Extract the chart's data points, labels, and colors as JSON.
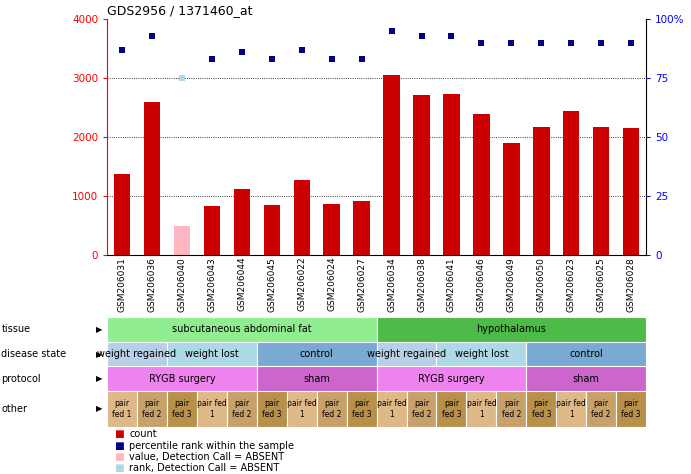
{
  "title": "GDS2956 / 1371460_at",
  "samples": [
    "GSM206031",
    "GSM206036",
    "GSM206040",
    "GSM206043",
    "GSM206044",
    "GSM206045",
    "GSM206022",
    "GSM206024",
    "GSM206027",
    "GSM206034",
    "GSM206038",
    "GSM206041",
    "GSM206046",
    "GSM206049",
    "GSM206050",
    "GSM206023",
    "GSM206025",
    "GSM206028"
  ],
  "bar_values": [
    1380,
    2600,
    500,
    830,
    1120,
    860,
    1280,
    870,
    920,
    3050,
    2720,
    2730,
    2400,
    1900,
    2180,
    2450,
    2180,
    2150
  ],
  "bar_colors": [
    "#cc0000",
    "#cc0000",
    "#ffb6c1",
    "#cc0000",
    "#cc0000",
    "#cc0000",
    "#cc0000",
    "#cc0000",
    "#cc0000",
    "#cc0000",
    "#cc0000",
    "#cc0000",
    "#cc0000",
    "#cc0000",
    "#cc0000",
    "#cc0000",
    "#cc0000",
    "#cc0000"
  ],
  "dot_values": [
    87,
    93,
    75,
    83,
    86,
    83,
    87,
    83,
    83,
    95,
    93,
    93,
    90,
    90,
    90,
    90,
    90,
    90
  ],
  "dot_absent": [
    false,
    false,
    true,
    false,
    false,
    false,
    false,
    false,
    false,
    false,
    false,
    false,
    false,
    false,
    false,
    false,
    false,
    false
  ],
  "ylim_left": [
    0,
    4000
  ],
  "ylim_right": [
    0,
    100
  ],
  "yticks_left": [
    0,
    1000,
    2000,
    3000,
    4000
  ],
  "ytick_labels_right": [
    "0",
    "25",
    "50",
    "75",
    "100%"
  ],
  "tissue_labels": [
    {
      "text": "subcutaneous abdominal fat",
      "start": 0,
      "end": 8,
      "color": "#90ee90"
    },
    {
      "text": "hypothalamus",
      "start": 9,
      "end": 17,
      "color": "#4cbb47"
    }
  ],
  "disease_labels": [
    {
      "text": "weight regained",
      "start": 0,
      "end": 1,
      "color": "#b8cfe8"
    },
    {
      "text": "weight lost",
      "start": 2,
      "end": 4,
      "color": "#add8e6"
    },
    {
      "text": "control",
      "start": 5,
      "end": 8,
      "color": "#7aaad4"
    },
    {
      "text": "weight regained",
      "start": 9,
      "end": 10,
      "color": "#b8cfe8"
    },
    {
      "text": "weight lost",
      "start": 11,
      "end": 13,
      "color": "#add8e6"
    },
    {
      "text": "control",
      "start": 14,
      "end": 17,
      "color": "#7aaad4"
    }
  ],
  "protocol_labels": [
    {
      "text": "RYGB surgery",
      "start": 0,
      "end": 4,
      "color": "#ee82ee"
    },
    {
      "text": "sham",
      "start": 5,
      "end": 8,
      "color": "#cc66cc"
    },
    {
      "text": "RYGB surgery",
      "start": 9,
      "end": 13,
      "color": "#ee82ee"
    },
    {
      "text": "sham",
      "start": 14,
      "end": 17,
      "color": "#cc66cc"
    }
  ],
  "other_texts": [
    "pair\nfed 1",
    "pair\nfed 2",
    "pair\nfed 3",
    "pair fed\n1",
    "pair\nfed 2",
    "pair\nfed 3",
    "pair fed\n1",
    "pair\nfed 2",
    "pair\nfed 3",
    "pair fed\n1",
    "pair\nfed 2",
    "pair\nfed 3",
    "pair fed\n1",
    "pair\nfed 2",
    "pair\nfed 3",
    "pair fed\n1",
    "pair\nfed 2",
    "pair\nfed 3"
  ],
  "other_colors": [
    "#deb887",
    "#c8a06a",
    "#b8904a",
    "#deb887",
    "#c8a06a",
    "#b8904a",
    "#deb887",
    "#c8a06a",
    "#b8904a",
    "#deb887",
    "#c8a06a",
    "#b8904a",
    "#deb887",
    "#c8a06a",
    "#b8904a",
    "#deb887",
    "#c8a06a",
    "#b8904a"
  ],
  "row_labels": [
    "tissue",
    "disease state",
    "protocol",
    "other"
  ],
  "legend_colors": [
    "#cc0000",
    "#00008b",
    "#ffb6c1",
    "#add8e6"
  ],
  "legend_texts": [
    "count",
    "percentile rank within the sample",
    "value, Detection Call = ABSENT",
    "rank, Detection Call = ABSENT"
  ]
}
